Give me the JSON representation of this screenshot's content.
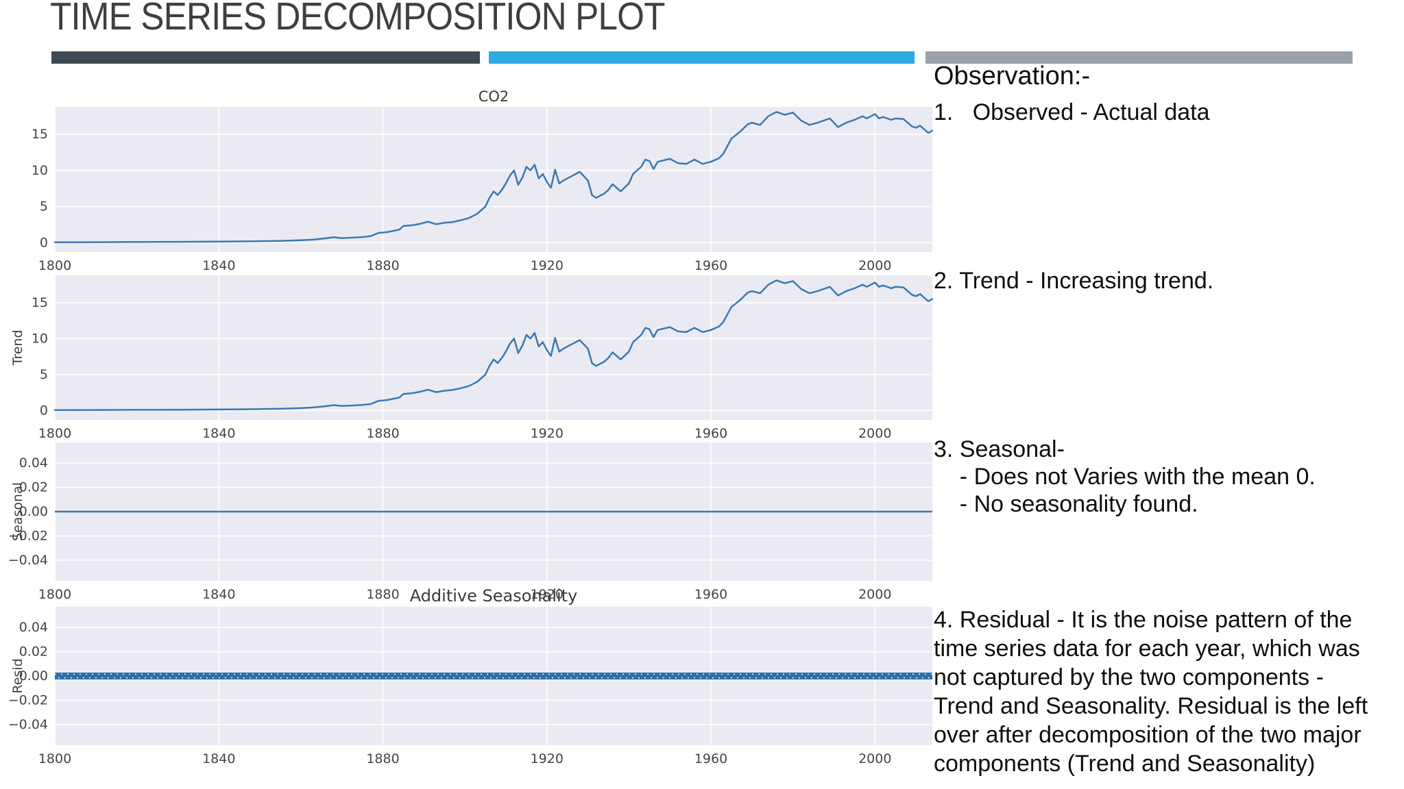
{
  "title": "TIME SERIES DECOMPOSITION PLOT",
  "style": {
    "accent_dark": "#3f4954",
    "accent_blue": "#29abdf",
    "accent_gray": "#9aa1aa",
    "line_color": "#3a78b3",
    "resid_band_color": "#2e6da8",
    "plot_bg": "#eaebf2",
    "grid_color": "#ffffff",
    "tick_color": "#444444",
    "title_color": "#3f3f3f",
    "text_color": "#0e0e0e"
  },
  "observations": {
    "heading": "Observation:-",
    "item1": "1.   Observed - Actual data",
    "item2": "2. Trend - Increasing trend.",
    "item3": "3. Seasonal-\n    - Does not Varies with the mean 0.\n    - No seasonality found.",
    "item4": "4. Residual - It is the noise pattern of the\ntime series data for each year, which was\nnot captured by the two components -\nTrend and Seasonality. Residual is the left\nover after decomposition of the two major\ncomponents (Trend and Seasonality)"
  },
  "chart_data": [
    {
      "name": "chart-observed",
      "type": "line",
      "title": "CO2",
      "ylabel": "",
      "xlabel": "",
      "xlim": [
        1800,
        2014
      ],
      "ylim": [
        -1.3,
        18.8
      ],
      "xticks": [
        1800,
        1840,
        1880,
        1920,
        1960,
        2000
      ],
      "yticks": [
        0,
        5,
        10,
        15
      ],
      "ytick_labels": [
        "0",
        "5",
        "10",
        "15"
      ],
      "grid": true,
      "legend_position": "none",
      "series": [
        {
          "name": "Observed",
          "x": [
            1800,
            1810,
            1820,
            1830,
            1840,
            1848,
            1855,
            1860,
            1863,
            1866,
            1868,
            1870,
            1872,
            1875,
            1877,
            1879,
            1881,
            1884,
            1885,
            1887,
            1889,
            1891,
            1893,
            1895,
            1897,
            1899,
            1901,
            1903,
            1905,
            1906,
            1907,
            1908,
            1909,
            1910,
            1911,
            1912,
            1913,
            1914,
            1915,
            1916,
            1917,
            1918,
            1919,
            1920,
            1921,
            1922,
            1923,
            1924,
            1926,
            1928,
            1930,
            1931,
            1932,
            1934,
            1935,
            1936,
            1938,
            1940,
            1941,
            1943,
            1944,
            1945,
            1946,
            1947,
            1950,
            1952,
            1954,
            1956,
            1958,
            1960,
            1962,
            1963,
            1965,
            1967,
            1969,
            1970,
            1972,
            1974,
            1976,
            1978,
            1980,
            1982,
            1984,
            1986,
            1989,
            1991,
            1993,
            1995,
            1997,
            1998,
            2000,
            2001,
            2002,
            2004,
            2005,
            2007,
            2009,
            2010,
            2011,
            2013,
            2014
          ],
          "y": [
            0.05,
            0.07,
            0.09,
            0.11,
            0.14,
            0.18,
            0.25,
            0.33,
            0.42,
            0.6,
            0.75,
            0.62,
            0.68,
            0.78,
            0.9,
            1.35,
            1.45,
            1.8,
            2.3,
            2.4,
            2.6,
            2.9,
            2.55,
            2.75,
            2.85,
            3.1,
            3.4,
            4.0,
            5.0,
            6.2,
            7.1,
            6.6,
            7.3,
            8.2,
            9.3,
            10.0,
            8.0,
            9.0,
            10.5,
            10.0,
            10.8,
            8.9,
            9.5,
            8.4,
            7.6,
            10.1,
            8.2,
            8.6,
            9.2,
            9.8,
            8.6,
            6.6,
            6.2,
            6.8,
            7.3,
            8.1,
            7.1,
            8.2,
            9.5,
            10.5,
            11.5,
            11.3,
            10.2,
            11.2,
            11.6,
            11.0,
            10.9,
            11.5,
            10.9,
            11.2,
            11.7,
            12.3,
            14.4,
            15.3,
            16.4,
            16.6,
            16.3,
            17.5,
            18.1,
            17.7,
            18.0,
            16.9,
            16.3,
            16.6,
            17.2,
            16.0,
            16.6,
            17.0,
            17.5,
            17.2,
            17.8,
            17.2,
            17.4,
            17.0,
            17.2,
            17.1,
            16.1,
            15.9,
            16.2,
            15.2,
            15.5
          ]
        }
      ]
    },
    {
      "name": "chart-trend",
      "type": "line",
      "title": "",
      "ylabel": "Trend",
      "xlabel": "",
      "xlim": [
        1800,
        2014
      ],
      "ylim": [
        -1.3,
        18.8
      ],
      "xticks": [
        1800,
        1840,
        1880,
        1920,
        1960,
        2000
      ],
      "yticks": [
        0,
        5,
        10,
        15
      ],
      "ytick_labels": [
        "0",
        "5",
        "10",
        "15"
      ],
      "grid": true,
      "legend_position": "none",
      "series": [
        {
          "name": "Trend",
          "x": [
            1800,
            1810,
            1820,
            1830,
            1840,
            1848,
            1855,
            1860,
            1863,
            1866,
            1868,
            1870,
            1872,
            1875,
            1877,
            1879,
            1881,
            1884,
            1885,
            1887,
            1889,
            1891,
            1893,
            1895,
            1897,
            1899,
            1901,
            1903,
            1905,
            1906,
            1907,
            1908,
            1909,
            1910,
            1911,
            1912,
            1913,
            1914,
            1915,
            1916,
            1917,
            1918,
            1919,
            1920,
            1921,
            1922,
            1923,
            1924,
            1926,
            1928,
            1930,
            1931,
            1932,
            1934,
            1935,
            1936,
            1938,
            1940,
            1941,
            1943,
            1944,
            1945,
            1946,
            1947,
            1950,
            1952,
            1954,
            1956,
            1958,
            1960,
            1962,
            1963,
            1965,
            1967,
            1969,
            1970,
            1972,
            1974,
            1976,
            1978,
            1980,
            1982,
            1984,
            1986,
            1989,
            1991,
            1993,
            1995,
            1997,
            1998,
            2000,
            2001,
            2002,
            2004,
            2005,
            2007,
            2009,
            2010,
            2011,
            2013,
            2014
          ],
          "y": [
            0.05,
            0.07,
            0.09,
            0.11,
            0.14,
            0.18,
            0.25,
            0.33,
            0.42,
            0.6,
            0.75,
            0.62,
            0.68,
            0.78,
            0.9,
            1.35,
            1.45,
            1.8,
            2.3,
            2.4,
            2.6,
            2.9,
            2.55,
            2.75,
            2.85,
            3.1,
            3.4,
            4.0,
            5.0,
            6.2,
            7.1,
            6.6,
            7.3,
            8.2,
            9.3,
            10.0,
            8.0,
            9.0,
            10.5,
            10.0,
            10.8,
            8.9,
            9.5,
            8.4,
            7.6,
            10.1,
            8.2,
            8.6,
            9.2,
            9.8,
            8.6,
            6.6,
            6.2,
            6.8,
            7.3,
            8.1,
            7.1,
            8.2,
            9.5,
            10.5,
            11.5,
            11.3,
            10.2,
            11.2,
            11.6,
            11.0,
            10.9,
            11.5,
            10.9,
            11.2,
            11.7,
            12.3,
            14.4,
            15.3,
            16.4,
            16.6,
            16.3,
            17.5,
            18.1,
            17.7,
            18.0,
            16.9,
            16.3,
            16.6,
            17.2,
            16.0,
            16.6,
            17.0,
            17.5,
            17.2,
            17.8,
            17.2,
            17.4,
            17.0,
            17.2,
            17.1,
            16.1,
            15.9,
            16.2,
            15.2,
            15.5
          ]
        }
      ]
    },
    {
      "name": "chart-seasonal",
      "type": "line",
      "title": "",
      "ylabel": "Seasonal",
      "xlabel": "",
      "xlim": [
        1800,
        2014
      ],
      "ylim": [
        -0.057,
        0.057
      ],
      "xticks": [
        1800,
        1840,
        1880,
        1920,
        1960,
        2000
      ],
      "yticks": [
        0.04,
        0.02,
        0,
        -0.02,
        -0.04
      ],
      "ytick_labels": [
        "0.04",
        "0.02",
        "0.00",
        "−0.02",
        "−0.04"
      ],
      "grid": true,
      "legend_position": "none",
      "series": [
        {
          "name": "Seasonal",
          "constant": 0
        }
      ]
    },
    {
      "name": "chart-residual",
      "type": "line",
      "title": "Additive Seasonality",
      "ylabel": "Resid",
      "xlabel": "",
      "xlim": [
        1800,
        2014
      ],
      "ylim": [
        -0.057,
        0.057
      ],
      "xticks": [
        1800,
        1840,
        1880,
        1920,
        1960,
        2000
      ],
      "yticks": [
        0.04,
        0.02,
        0,
        -0.02,
        -0.04
      ],
      "ytick_labels": [
        "0.04",
        "0.02",
        "0.00",
        "−0.02",
        "−0.04"
      ],
      "grid": true,
      "legend_position": "none",
      "series": [
        {
          "name": "Resid",
          "constant": 0,
          "marker_band": true
        }
      ]
    }
  ]
}
